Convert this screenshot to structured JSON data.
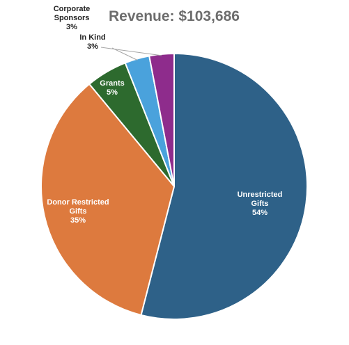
{
  "chart_data": {
    "type": "pie",
    "title": "Revenue: $103,686",
    "total": "$103,686",
    "categories": [
      "Unrestricted Gifts",
      "Donor Restricted Gifts",
      "Grants",
      "In Kind",
      "Corporate Sponsors"
    ],
    "values": [
      54,
      35,
      5,
      3,
      3
    ],
    "labels": [
      {
        "lines": [
          "Unrestricted",
          "Gifts",
          "54%"
        ],
        "placement": "inside"
      },
      {
        "lines": [
          "Donor Restricted",
          "Gifts",
          "35%"
        ],
        "placement": "inside"
      },
      {
        "lines": [
          "Grants",
          "5%"
        ],
        "placement": "inside"
      },
      {
        "lines": [
          "In Kind",
          "3%"
        ],
        "placement": "outside"
      },
      {
        "lines": [
          "Corporate",
          "Sponsors",
          "3%"
        ],
        "placement": "outside"
      }
    ],
    "colors": [
      "#2e6188",
      "#dd7a3e",
      "#2d6a2e",
      "#4aa2dc",
      "#8e2c8c"
    ],
    "slice_border_color": "#ffffff",
    "legend": "none",
    "start_angle": "top",
    "direction": "clockwise"
  }
}
